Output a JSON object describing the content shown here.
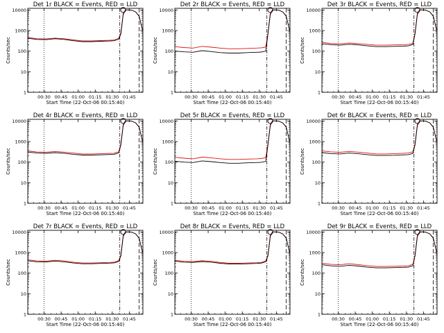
{
  "chart_data": [
    {
      "type": "line",
      "title": "Det 1r BLACK = Events, RED = LLD",
      "xlabel": "Start Time (22-Oct-06 00:15:40)",
      "ylabel": "Counts/sec",
      "yscale": "log",
      "ylim": [
        1,
        12000
      ],
      "xlim": [
        "00:15:40",
        "01:57:00"
      ],
      "x_ticks": [
        "00:30",
        "00:45",
        "01:00",
        "01:15",
        "01:30",
        "01:45"
      ],
      "y_ticks": [
        "1",
        "10",
        "100",
        "1000",
        "10000"
      ],
      "x_minutes": [
        0,
        8,
        16,
        24,
        32,
        40,
        48,
        56,
        64,
        72,
        76,
        78,
        80,
        82,
        84,
        86,
        89,
        90,
        92,
        95,
        98,
        101
      ],
      "series": [
        {
          "color": "#000000",
          "values": [
            420,
            370,
            360,
            400,
            370,
            320,
            290,
            290,
            300,
            310,
            320,
            350,
            380,
            700,
            6000,
            10000,
            10000,
            10000,
            9500,
            8000,
            5000,
            1000
          ]
        },
        {
          "color": "#e01010",
          "values": [
            460,
            400,
            390,
            430,
            400,
            350,
            315,
            315,
            325,
            335,
            345,
            380,
            420,
            800,
            7000,
            10000,
            10000,
            10000,
            9600,
            8100,
            5100,
            1050
          ]
        }
      ],
      "markers": {
        "dotted_minutes": 14.3,
        "dashdot_minutes": 81,
        "longdash_minutes": 98,
        "circle": {
          "minute": 84,
          "value": 10000
        }
      }
    },
    {
      "type": "line",
      "title": "Det 2r BLACK = Events, RED = LLD",
      "xlabel": "Start Time (22-Oct-06 00:15:40)",
      "ylabel": "Counts/sec",
      "yscale": "log",
      "ylim": [
        1,
        12000
      ],
      "xlim": [
        "00:15:40",
        "01:57:00"
      ],
      "x_ticks": [
        "00:30",
        "00:45",
        "01:00",
        "01:15",
        "01:30",
        "01:45"
      ],
      "y_ticks": [
        "1",
        "10",
        "100",
        "1000",
        "10000"
      ],
      "x_minutes": [
        0,
        8,
        16,
        24,
        32,
        40,
        48,
        56,
        64,
        72,
        76,
        78,
        80,
        82,
        84,
        86,
        89,
        90,
        92,
        95,
        98,
        101
      ],
      "series": [
        {
          "color": "#000000",
          "values": [
            100,
            92,
            88,
            105,
            95,
            85,
            80,
            80,
            85,
            88,
            90,
            95,
            100,
            700,
            6000,
            10000,
            10000,
            10000,
            9500,
            8000,
            5000,
            1000
          ]
        },
        {
          "color": "#e01010",
          "values": [
            165,
            150,
            140,
            170,
            155,
            140,
            130,
            130,
            135,
            140,
            145,
            150,
            160,
            800,
            7000,
            10000,
            10000,
            10000,
            9600,
            8100,
            5100,
            1050
          ]
        }
      ],
      "markers": {
        "dotted_minutes": 14.3,
        "dashdot_minutes": 81,
        "longdash_minutes": 98,
        "circle": {
          "minute": 84,
          "value": 10000
        }
      }
    },
    {
      "type": "line",
      "title": "Det 3r BLACK = Events, RED = LLD",
      "xlabel": "Start Time (22-Oct-06 00:15:40)",
      "ylabel": "Counts/sec",
      "yscale": "log",
      "ylim": [
        1,
        12000
      ],
      "xlim": [
        "00:15:40",
        "01:57:00"
      ],
      "x_ticks": [
        "00:30",
        "00:45",
        "01:00",
        "01:15",
        "01:30",
        "01:45"
      ],
      "y_ticks": [
        "1",
        "10",
        "100",
        "1000",
        "10000"
      ],
      "x_minutes": [
        0,
        8,
        16,
        24,
        32,
        40,
        48,
        56,
        64,
        72,
        76,
        78,
        80,
        82,
        84,
        86,
        89,
        90,
        92,
        95,
        98,
        101
      ],
      "series": [
        {
          "color": "#000000",
          "values": [
            230,
            205,
            195,
            215,
            200,
            180,
            165,
            165,
            170,
            175,
            180,
            195,
            210,
            700,
            6000,
            10000,
            10000,
            10000,
            9500,
            8000,
            5000,
            1000
          ]
        },
        {
          "color": "#e01010",
          "values": [
            265,
            235,
            225,
            250,
            230,
            210,
            195,
            195,
            200,
            205,
            210,
            225,
            240,
            800,
            7000,
            10000,
            10000,
            10000,
            9600,
            8100,
            5100,
            1050
          ]
        }
      ],
      "markers": {
        "dotted_minutes": 14.3,
        "dashdot_minutes": 81,
        "longdash_minutes": 98,
        "circle": {
          "minute": 84,
          "value": 10000
        }
      }
    },
    {
      "type": "line",
      "title": "Det 4r BLACK = Events, RED = LLD",
      "xlabel": "Start Time (22-Oct-06 00:15:40)",
      "ylabel": "Counts/sec",
      "yscale": "log",
      "ylim": [
        1,
        12000
      ],
      "xlim": [
        "00:15:40",
        "01:57:00"
      ],
      "x_ticks": [
        "00:30",
        "00:45",
        "01:00",
        "01:15",
        "01:30",
        "01:45"
      ],
      "y_ticks": [
        "1",
        "10",
        "100",
        "1000",
        "10000"
      ],
      "x_minutes": [
        0,
        8,
        16,
        24,
        32,
        40,
        48,
        56,
        64,
        72,
        76,
        78,
        80,
        82,
        84,
        86,
        89,
        90,
        92,
        95,
        98,
        101
      ],
      "series": [
        {
          "color": "#000000",
          "values": [
            310,
            275,
            265,
            290,
            270,
            240,
            220,
            220,
            225,
            235,
            240,
            260,
            280,
            700,
            6000,
            10000,
            10000,
            10000,
            9500,
            8000,
            5000,
            1000
          ]
        },
        {
          "color": "#e01010",
          "values": [
            350,
            310,
            300,
            330,
            305,
            275,
            250,
            250,
            255,
            265,
            270,
            295,
            315,
            800,
            7000,
            10000,
            10000,
            10000,
            9600,
            8100,
            5100,
            1050
          ]
        }
      ],
      "markers": {
        "dotted_minutes": 14.3,
        "dashdot_minutes": 81,
        "longdash_minutes": 98,
        "circle": {
          "minute": 84,
          "value": 10000
        }
      }
    },
    {
      "type": "line",
      "title": "Det 5r BLACK = Events, RED = LLD",
      "xlabel": "Start Time (22-Oct-06 00:15:40)",
      "ylabel": "Counts/sec",
      "yscale": "log",
      "ylim": [
        1,
        12000
      ],
      "xlim": [
        "00:15:40",
        "01:57:00"
      ],
      "x_ticks": [
        "00:30",
        "00:45",
        "01:00",
        "01:15",
        "01:30",
        "01:45"
      ],
      "y_ticks": [
        "1",
        "10",
        "100",
        "1000",
        "10000"
      ],
      "x_minutes": [
        0,
        8,
        16,
        24,
        32,
        40,
        48,
        56,
        64,
        72,
        76,
        78,
        80,
        82,
        84,
        86,
        89,
        90,
        92,
        95,
        98,
        101
      ],
      "series": [
        {
          "color": "#000000",
          "values": [
            110,
            100,
            95,
            115,
            105,
            95,
            88,
            88,
            92,
            95,
            98,
            103,
            108,
            700,
            6000,
            10000,
            10000,
            10000,
            9500,
            8000,
            5000,
            1000
          ]
        },
        {
          "color": "#e01010",
          "values": [
            170,
            155,
            145,
            175,
            160,
            145,
            135,
            135,
            140,
            145,
            150,
            158,
            165,
            800,
            7000,
            10000,
            10000,
            10000,
            9600,
            8100,
            5100,
            1050
          ]
        }
      ],
      "markers": {
        "dotted_minutes": 14.3,
        "dashdot_minutes": 81,
        "longdash_minutes": 98,
        "circle": {
          "minute": 84,
          "value": 10000
        }
      }
    },
    {
      "type": "line",
      "title": "Det 6r BLACK = Events, RED = LLD",
      "xlabel": "Start Time (22-Oct-06 00:15:40)",
      "ylabel": "Counts/sec",
      "yscale": "log",
      "ylim": [
        1,
        12000
      ],
      "xlim": [
        "00:15:40",
        "01:57:00"
      ],
      "x_ticks": [
        "00:30",
        "00:45",
        "01:00",
        "01:15",
        "01:30",
        "01:45"
      ],
      "y_ticks": [
        "1",
        "10",
        "100",
        "1000",
        "10000"
      ],
      "x_minutes": [
        0,
        8,
        16,
        24,
        32,
        40,
        48,
        56,
        64,
        72,
        76,
        78,
        80,
        82,
        84,
        86,
        89,
        90,
        92,
        95,
        98,
        101
      ],
      "series": [
        {
          "color": "#000000",
          "values": [
            290,
            260,
            250,
            275,
            255,
            230,
            210,
            210,
            215,
            225,
            230,
            245,
            265,
            700,
            6000,
            10000,
            10000,
            10000,
            9500,
            8000,
            5000,
            1000
          ]
        },
        {
          "color": "#e01010",
          "values": [
            350,
            315,
            300,
            330,
            305,
            275,
            250,
            250,
            260,
            270,
            275,
            295,
            315,
            800,
            7000,
            10000,
            10000,
            10000,
            9600,
            8100,
            5100,
            1050
          ]
        }
      ],
      "markers": {
        "dotted_minutes": 14.3,
        "dashdot_minutes": 81,
        "longdash_minutes": 98,
        "circle": {
          "minute": 84,
          "value": 10000
        }
      }
    },
    {
      "type": "line",
      "title": "Det 7r BLACK = Events, RED = LLD",
      "xlabel": "Start Time (22-Oct-06 00:15:40)",
      "ylabel": "Counts/sec",
      "yscale": "log",
      "ylim": [
        1,
        12000
      ],
      "xlim": [
        "00:15:40",
        "01:57:00"
      ],
      "x_ticks": [
        "00:30",
        "00:45",
        "01:00",
        "01:15",
        "01:30",
        "01:45"
      ],
      "y_ticks": [
        "1",
        "10",
        "100",
        "1000",
        "10000"
      ],
      "x_minutes": [
        0,
        8,
        16,
        24,
        32,
        40,
        48,
        56,
        64,
        72,
        76,
        78,
        80,
        82,
        84,
        86,
        89,
        90,
        92,
        95,
        98,
        101
      ],
      "series": [
        {
          "color": "#000000",
          "values": [
            400,
            355,
            345,
            385,
            355,
            310,
            285,
            285,
            295,
            305,
            315,
            340,
            370,
            700,
            6000,
            10000,
            10000,
            10000,
            9500,
            8000,
            5000,
            1000
          ]
        },
        {
          "color": "#e01010",
          "values": [
            440,
            390,
            380,
            420,
            390,
            340,
            310,
            310,
            320,
            330,
            340,
            370,
            400,
            800,
            7000,
            10000,
            10000,
            10000,
            9600,
            8100,
            5100,
            1050
          ]
        }
      ],
      "markers": {
        "dotted_minutes": 14.3,
        "dashdot_minutes": 81,
        "longdash_minutes": 98,
        "circle": {
          "minute": 84,
          "value": 10000
        }
      }
    },
    {
      "type": "line",
      "title": "Det 8r BLACK = Events, RED = LLD",
      "xlabel": "Start Time (22-Oct-06 00:15:40)",
      "ylabel": "Counts/sec",
      "yscale": "log",
      "ylim": [
        1,
        12000
      ],
      "xlim": [
        "00:15:40",
        "01:57:00"
      ],
      "x_ticks": [
        "00:30",
        "00:45",
        "01:00",
        "01:15",
        "01:30",
        "01:45"
      ],
      "y_ticks": [
        "1",
        "10",
        "100",
        "1000",
        "10000"
      ],
      "x_minutes": [
        0,
        8,
        16,
        24,
        32,
        40,
        48,
        56,
        64,
        72,
        76,
        78,
        80,
        82,
        84,
        86,
        89,
        90,
        92,
        95,
        98,
        101
      ],
      "series": [
        {
          "color": "#000000",
          "values": [
            380,
            340,
            330,
            365,
            340,
            300,
            275,
            275,
            285,
            295,
            305,
            330,
            360,
            700,
            6000,
            10000,
            10000,
            10000,
            9500,
            8000,
            5000,
            1000
          ]
        },
        {
          "color": "#e01010",
          "values": [
            420,
            375,
            365,
            400,
            375,
            330,
            300,
            300,
            310,
            320,
            330,
            360,
            390,
            800,
            7000,
            10000,
            10000,
            10000,
            9600,
            8100,
            5100,
            1050
          ]
        }
      ],
      "markers": {
        "dotted_minutes": 14.3,
        "dashdot_minutes": 81,
        "longdash_minutes": 98,
        "circle": {
          "minute": 84,
          "value": 10000
        }
      }
    },
    {
      "type": "line",
      "title": "Det 9r BLACK = Events, RED = LLD",
      "xlabel": "Start Time (22-Oct-06 00:15:40)",
      "ylabel": "Counts/sec",
      "yscale": "log",
      "ylim": [
        1,
        12000
      ],
      "xlim": [
        "00:15:40",
        "01:57:00"
      ],
      "x_ticks": [
        "00:30",
        "00:45",
        "01:00",
        "01:15",
        "01:30",
        "01:45"
      ],
      "y_ticks": [
        "1",
        "10",
        "100",
        "1000",
        "10000"
      ],
      "x_minutes": [
        0,
        8,
        16,
        24,
        32,
        40,
        48,
        56,
        64,
        72,
        76,
        78,
        80,
        82,
        84,
        86,
        89,
        90,
        92,
        95,
        98,
        101
      ],
      "series": [
        {
          "color": "#000000",
          "values": [
            255,
            225,
            215,
            240,
            220,
            195,
            180,
            180,
            185,
            190,
            195,
            210,
            225,
            700,
            6000,
            10000,
            10000,
            10000,
            9500,
            8000,
            5000,
            1000
          ]
        },
        {
          "color": "#e01010",
          "values": [
            300,
            265,
            255,
            285,
            260,
            230,
            210,
            210,
            215,
            220,
            225,
            245,
            265,
            800,
            7000,
            10000,
            10000,
            10000,
            9600,
            8100,
            5100,
            1050
          ]
        }
      ],
      "markers": {
        "dotted_minutes": 14.3,
        "dashdot_minutes": 81,
        "longdash_minutes": 98,
        "circle": {
          "minute": 84,
          "value": 10000
        }
      }
    }
  ]
}
